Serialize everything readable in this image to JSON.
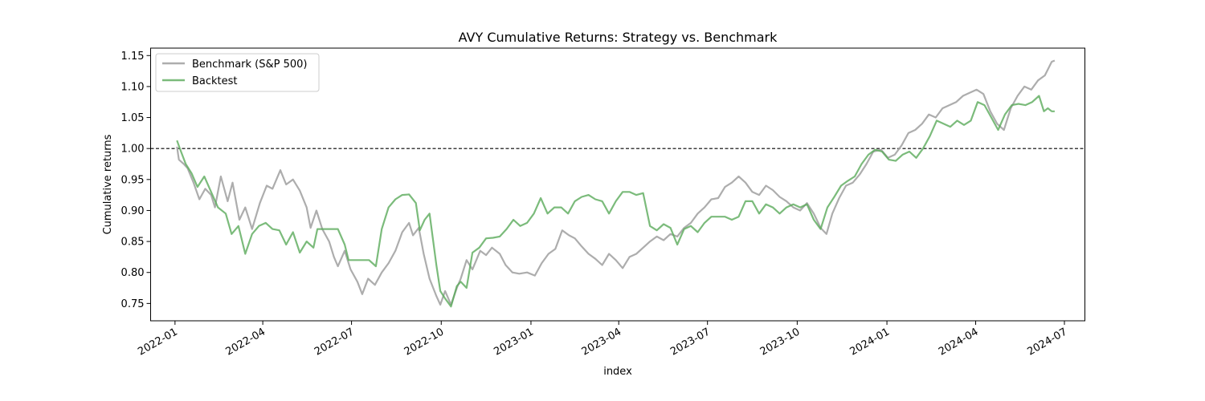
{
  "chart_data": {
    "type": "line",
    "title": "AVY Cumulative Returns: Strategy vs. Benchmark",
    "xlabel": "index",
    "ylabel": "Cumulative returns",
    "xlim": [
      "2021-12-07",
      "2024-07-22"
    ],
    "ylim": [
      0.722,
      1.162
    ],
    "x_ticks": [
      "2022-01",
      "2022-04",
      "2022-07",
      "2022-10",
      "2023-01",
      "2023-04",
      "2023-07",
      "2023-10",
      "2024-01",
      "2024-04",
      "2024-07"
    ],
    "y_ticks": [
      0.75,
      0.8,
      0.85,
      0.9,
      0.95,
      1.0,
      1.05,
      1.1,
      1.15
    ],
    "y_tick_labels": [
      "0.75",
      "0.80",
      "0.85",
      "0.90",
      "0.95",
      "1.00",
      "1.05",
      "1.10",
      "1.15"
    ],
    "reference_line": {
      "y": 1.0,
      "style": "dashed",
      "color": "#000000"
    },
    "grid": false,
    "legend": {
      "placement": "top-left"
    },
    "series": [
      {
        "name": "Benchmark (S&P 500)",
        "color": "#a9a9a9",
        "points": [
          [
            "2022-01-03",
            1.003
          ],
          [
            "2022-01-05",
            0.982
          ],
          [
            "2022-01-10",
            0.975
          ],
          [
            "2022-01-14",
            0.968
          ],
          [
            "2022-01-20",
            0.945
          ],
          [
            "2022-01-26",
            0.918
          ],
          [
            "2022-02-01",
            0.935
          ],
          [
            "2022-02-07",
            0.925
          ],
          [
            "2022-02-11",
            0.905
          ],
          [
            "2022-02-17",
            0.955
          ],
          [
            "2022-02-24",
            0.915
          ],
          [
            "2022-03-01",
            0.945
          ],
          [
            "2022-03-08",
            0.885
          ],
          [
            "2022-03-14",
            0.905
          ],
          [
            "2022-03-21",
            0.87
          ],
          [
            "2022-03-29",
            0.912
          ],
          [
            "2022-04-05",
            0.94
          ],
          [
            "2022-04-11",
            0.935
          ],
          [
            "2022-04-19",
            0.965
          ],
          [
            "2022-04-25",
            0.942
          ],
          [
            "2022-05-02",
            0.95
          ],
          [
            "2022-05-09",
            0.932
          ],
          [
            "2022-05-16",
            0.905
          ],
          [
            "2022-05-20",
            0.872
          ],
          [
            "2022-05-26",
            0.9
          ],
          [
            "2022-06-01",
            0.87
          ],
          [
            "2022-06-08",
            0.85
          ],
          [
            "2022-06-13",
            0.825
          ],
          [
            "2022-06-17",
            0.81
          ],
          [
            "2022-06-24",
            0.835
          ],
          [
            "2022-06-30",
            0.805
          ],
          [
            "2022-07-07",
            0.785
          ],
          [
            "2022-07-12",
            0.765
          ],
          [
            "2022-07-18",
            0.79
          ],
          [
            "2022-07-25",
            0.78
          ],
          [
            "2022-08-01",
            0.8
          ],
          [
            "2022-08-08",
            0.815
          ],
          [
            "2022-08-15",
            0.835
          ],
          [
            "2022-08-22",
            0.865
          ],
          [
            "2022-08-29",
            0.88
          ],
          [
            "2022-09-02",
            0.86
          ],
          [
            "2022-09-08",
            0.872
          ],
          [
            "2022-09-13",
            0.83
          ],
          [
            "2022-09-19",
            0.79
          ],
          [
            "2022-09-26",
            0.762
          ],
          [
            "2022-09-30",
            0.748
          ],
          [
            "2022-10-05",
            0.77
          ],
          [
            "2022-10-11",
            0.748
          ],
          [
            "2022-10-17",
            0.775
          ],
          [
            "2022-10-21",
            0.79
          ],
          [
            "2022-10-27",
            0.82
          ],
          [
            "2022-11-02",
            0.805
          ],
          [
            "2022-11-10",
            0.835
          ],
          [
            "2022-11-16",
            0.828
          ],
          [
            "2022-11-22",
            0.84
          ],
          [
            "2022-11-30",
            0.83
          ],
          [
            "2022-12-06",
            0.812
          ],
          [
            "2022-12-13",
            0.8
          ],
          [
            "2022-12-20",
            0.798
          ],
          [
            "2022-12-28",
            0.8
          ],
          [
            "2023-01-05",
            0.795
          ],
          [
            "2023-01-12",
            0.815
          ],
          [
            "2023-01-19",
            0.83
          ],
          [
            "2023-01-26",
            0.838
          ],
          [
            "2023-02-02",
            0.868
          ],
          [
            "2023-02-09",
            0.86
          ],
          [
            "2023-02-15",
            0.855
          ],
          [
            "2023-02-22",
            0.842
          ],
          [
            "2023-03-01",
            0.83
          ],
          [
            "2023-03-08",
            0.822
          ],
          [
            "2023-03-15",
            0.812
          ],
          [
            "2023-03-22",
            0.83
          ],
          [
            "2023-03-29",
            0.82
          ],
          [
            "2023-04-05",
            0.807
          ],
          [
            "2023-04-12",
            0.825
          ],
          [
            "2023-04-19",
            0.83
          ],
          [
            "2023-04-26",
            0.84
          ],
          [
            "2023-05-03",
            0.85
          ],
          [
            "2023-05-10",
            0.858
          ],
          [
            "2023-05-17",
            0.852
          ],
          [
            "2023-05-24",
            0.862
          ],
          [
            "2023-05-31",
            0.858
          ],
          [
            "2023-06-07",
            0.872
          ],
          [
            "2023-06-14",
            0.88
          ],
          [
            "2023-06-21",
            0.895
          ],
          [
            "2023-06-28",
            0.905
          ],
          [
            "2023-07-05",
            0.918
          ],
          [
            "2023-07-12",
            0.92
          ],
          [
            "2023-07-19",
            0.938
          ],
          [
            "2023-07-26",
            0.945
          ],
          [
            "2023-08-02",
            0.955
          ],
          [
            "2023-08-09",
            0.945
          ],
          [
            "2023-08-16",
            0.93
          ],
          [
            "2023-08-23",
            0.925
          ],
          [
            "2023-08-30",
            0.94
          ],
          [
            "2023-09-06",
            0.933
          ],
          [
            "2023-09-13",
            0.922
          ],
          [
            "2023-09-20",
            0.915
          ],
          [
            "2023-09-27",
            0.905
          ],
          [
            "2023-10-04",
            0.9
          ],
          [
            "2023-10-11",
            0.912
          ],
          [
            "2023-10-18",
            0.895
          ],
          [
            "2023-10-25",
            0.872
          ],
          [
            "2023-10-31",
            0.862
          ],
          [
            "2023-11-06",
            0.895
          ],
          [
            "2023-11-13",
            0.92
          ],
          [
            "2023-11-20",
            0.94
          ],
          [
            "2023-11-27",
            0.945
          ],
          [
            "2023-12-04",
            0.958
          ],
          [
            "2023-12-11",
            0.975
          ],
          [
            "2023-12-18",
            0.995
          ],
          [
            "2023-12-26",
            0.998
          ],
          [
            "2024-01-02",
            0.985
          ],
          [
            "2024-01-09",
            0.99
          ],
          [
            "2024-01-16",
            1.005
          ],
          [
            "2024-01-23",
            1.025
          ],
          [
            "2024-01-30",
            1.03
          ],
          [
            "2024-02-06",
            1.04
          ],
          [
            "2024-02-13",
            1.055
          ],
          [
            "2024-02-20",
            1.05
          ],
          [
            "2024-02-27",
            1.065
          ],
          [
            "2024-03-05",
            1.07
          ],
          [
            "2024-03-12",
            1.075
          ],
          [
            "2024-03-19",
            1.085
          ],
          [
            "2024-03-26",
            1.09
          ],
          [
            "2024-04-02",
            1.095
          ],
          [
            "2024-04-09",
            1.088
          ],
          [
            "2024-04-16",
            1.06
          ],
          [
            "2024-04-23",
            1.04
          ],
          [
            "2024-04-30",
            1.03
          ],
          [
            "2024-05-07",
            1.065
          ],
          [
            "2024-05-14",
            1.085
          ],
          [
            "2024-05-21",
            1.1
          ],
          [
            "2024-05-28",
            1.095
          ],
          [
            "2024-06-04",
            1.11
          ],
          [
            "2024-06-11",
            1.118
          ],
          [
            "2024-06-18",
            1.14
          ],
          [
            "2024-06-21",
            1.142
          ]
        ]
      },
      {
        "name": "Backtest",
        "color": "#5aaa5a",
        "points": [
          [
            "2022-01-03",
            1.013
          ],
          [
            "2022-01-06",
            1.0
          ],
          [
            "2022-01-12",
            0.975
          ],
          [
            "2022-01-18",
            0.96
          ],
          [
            "2022-01-24",
            0.938
          ],
          [
            "2022-01-31",
            0.955
          ],
          [
            "2022-02-07",
            0.93
          ],
          [
            "2022-02-14",
            0.905
          ],
          [
            "2022-02-22",
            0.895
          ],
          [
            "2022-02-28",
            0.862
          ],
          [
            "2022-03-07",
            0.875
          ],
          [
            "2022-03-14",
            0.83
          ],
          [
            "2022-03-21",
            0.862
          ],
          [
            "2022-03-28",
            0.875
          ],
          [
            "2022-04-04",
            0.88
          ],
          [
            "2022-04-11",
            0.87
          ],
          [
            "2022-04-18",
            0.868
          ],
          [
            "2022-04-25",
            0.845
          ],
          [
            "2022-05-02",
            0.865
          ],
          [
            "2022-05-09",
            0.832
          ],
          [
            "2022-05-16",
            0.85
          ],
          [
            "2022-05-23",
            0.84
          ],
          [
            "2022-05-27",
            0.87
          ],
          [
            "2022-06-03",
            0.87
          ],
          [
            "2022-06-10",
            0.87
          ],
          [
            "2022-06-17",
            0.87
          ],
          [
            "2022-06-24",
            0.845
          ],
          [
            "2022-06-28",
            0.82
          ],
          [
            "2022-07-05",
            0.82
          ],
          [
            "2022-07-12",
            0.82
          ],
          [
            "2022-07-19",
            0.82
          ],
          [
            "2022-07-26",
            0.81
          ],
          [
            "2022-08-01",
            0.87
          ],
          [
            "2022-08-08",
            0.905
          ],
          [
            "2022-08-15",
            0.918
          ],
          [
            "2022-08-22",
            0.925
          ],
          [
            "2022-08-29",
            0.926
          ],
          [
            "2022-09-05",
            0.912
          ],
          [
            "2022-09-09",
            0.868
          ],
          [
            "2022-09-14",
            0.885
          ],
          [
            "2022-09-19",
            0.895
          ],
          [
            "2022-09-26",
            0.812
          ],
          [
            "2022-09-30",
            0.77
          ],
          [
            "2022-10-05",
            0.758
          ],
          [
            "2022-10-11",
            0.745
          ],
          [
            "2022-10-17",
            0.778
          ],
          [
            "2022-10-21",
            0.785
          ],
          [
            "2022-10-27",
            0.775
          ],
          [
            "2022-11-02",
            0.832
          ],
          [
            "2022-11-09",
            0.84
          ],
          [
            "2022-11-16",
            0.855
          ],
          [
            "2022-11-23",
            0.856
          ],
          [
            "2022-11-30",
            0.858
          ],
          [
            "2022-12-07",
            0.87
          ],
          [
            "2022-12-14",
            0.885
          ],
          [
            "2022-12-21",
            0.875
          ],
          [
            "2022-12-28",
            0.88
          ],
          [
            "2023-01-04",
            0.895
          ],
          [
            "2023-01-11",
            0.92
          ],
          [
            "2023-01-18",
            0.895
          ],
          [
            "2023-01-25",
            0.905
          ],
          [
            "2023-02-01",
            0.905
          ],
          [
            "2023-02-08",
            0.895
          ],
          [
            "2023-02-15",
            0.915
          ],
          [
            "2023-02-22",
            0.922
          ],
          [
            "2023-03-01",
            0.925
          ],
          [
            "2023-03-08",
            0.918
          ],
          [
            "2023-03-15",
            0.915
          ],
          [
            "2023-03-22",
            0.895
          ],
          [
            "2023-03-29",
            0.915
          ],
          [
            "2023-04-05",
            0.93
          ],
          [
            "2023-04-12",
            0.93
          ],
          [
            "2023-04-19",
            0.925
          ],
          [
            "2023-04-26",
            0.928
          ],
          [
            "2023-05-03",
            0.875
          ],
          [
            "2023-05-10",
            0.868
          ],
          [
            "2023-05-17",
            0.878
          ],
          [
            "2023-05-24",
            0.872
          ],
          [
            "2023-05-31",
            0.845
          ],
          [
            "2023-06-07",
            0.87
          ],
          [
            "2023-06-14",
            0.875
          ],
          [
            "2023-06-21",
            0.865
          ],
          [
            "2023-06-28",
            0.88
          ],
          [
            "2023-07-05",
            0.89
          ],
          [
            "2023-07-12",
            0.89
          ],
          [
            "2023-07-19",
            0.89
          ],
          [
            "2023-07-26",
            0.885
          ],
          [
            "2023-08-02",
            0.89
          ],
          [
            "2023-08-09",
            0.915
          ],
          [
            "2023-08-16",
            0.915
          ],
          [
            "2023-08-23",
            0.895
          ],
          [
            "2023-08-30",
            0.91
          ],
          [
            "2023-09-06",
            0.905
          ],
          [
            "2023-09-13",
            0.895
          ],
          [
            "2023-09-20",
            0.905
          ],
          [
            "2023-09-27",
            0.91
          ],
          [
            "2023-10-04",
            0.905
          ],
          [
            "2023-10-11",
            0.91
          ],
          [
            "2023-10-18",
            0.885
          ],
          [
            "2023-10-25",
            0.87
          ],
          [
            "2023-11-01",
            0.905
          ],
          [
            "2023-11-08",
            0.922
          ],
          [
            "2023-11-15",
            0.94
          ],
          [
            "2023-11-22",
            0.948
          ],
          [
            "2023-11-29",
            0.955
          ],
          [
            "2023-12-06",
            0.975
          ],
          [
            "2023-12-13",
            0.99
          ],
          [
            "2023-12-20",
            0.998
          ],
          [
            "2023-12-27",
            0.995
          ],
          [
            "2024-01-03",
            0.982
          ],
          [
            "2024-01-10",
            0.98
          ],
          [
            "2024-01-17",
            0.99
          ],
          [
            "2024-01-24",
            0.995
          ],
          [
            "2024-01-31",
            0.985
          ],
          [
            "2024-02-07",
            1.0
          ],
          [
            "2024-02-14",
            1.02
          ],
          [
            "2024-02-21",
            1.045
          ],
          [
            "2024-02-28",
            1.04
          ],
          [
            "2024-03-06",
            1.035
          ],
          [
            "2024-03-13",
            1.045
          ],
          [
            "2024-03-20",
            1.038
          ],
          [
            "2024-03-27",
            1.045
          ],
          [
            "2024-04-03",
            1.075
          ],
          [
            "2024-04-10",
            1.07
          ],
          [
            "2024-04-17",
            1.05
          ],
          [
            "2024-04-24",
            1.03
          ],
          [
            "2024-05-01",
            1.055
          ],
          [
            "2024-05-08",
            1.07
          ],
          [
            "2024-05-15",
            1.072
          ],
          [
            "2024-05-22",
            1.07
          ],
          [
            "2024-05-29",
            1.075
          ],
          [
            "2024-06-05",
            1.085
          ],
          [
            "2024-06-10",
            1.06
          ],
          [
            "2024-06-14",
            1.065
          ],
          [
            "2024-06-18",
            1.06
          ],
          [
            "2024-06-21",
            1.06
          ]
        ]
      }
    ]
  }
}
